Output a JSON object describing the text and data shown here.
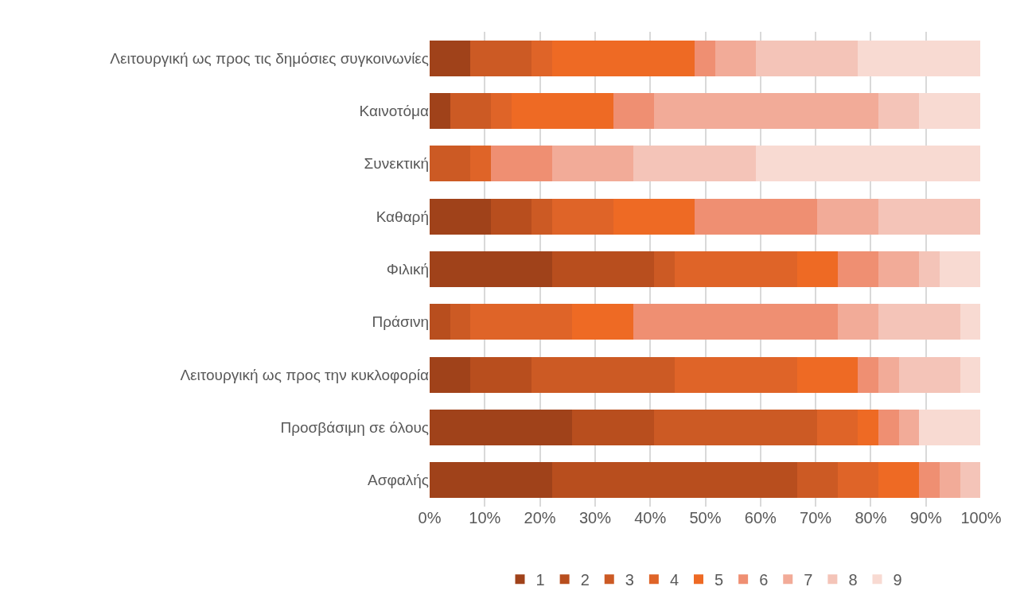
{
  "chart_data": {
    "type": "bar",
    "orientation": "horizontal",
    "stacked": true,
    "categories": [
      "Λειτουργική ως προς τις δημόσιες συγκοινωνίες",
      "Καινοτόμα",
      "Συνεκτική",
      "Καθαρή",
      "Φιλική",
      "Πράσινη",
      "Λειτουργική ως προς την κυκλοφορία",
      "Προσβάσιμη σε όλους",
      "Ασφαλής"
    ],
    "series": [
      {
        "name": "1",
        "color": "#a0421a",
        "values": [
          7.4,
          3.7,
          0,
          11.1,
          22.2,
          0,
          7.4,
          25.9,
          22.2
        ]
      },
      {
        "name": "2",
        "color": "#b84e1e",
        "values": [
          0,
          0,
          0,
          7.4,
          18.5,
          3.7,
          11.1,
          14.8,
          44.4
        ]
      },
      {
        "name": "3",
        "color": "#cc5a24",
        "values": [
          11.1,
          7.4,
          7.4,
          3.7,
          3.7,
          3.7,
          25.9,
          29.6,
          7.4
        ]
      },
      {
        "name": "4",
        "color": "#df6428",
        "values": [
          3.7,
          3.7,
          3.7,
          11.1,
          22.2,
          18.5,
          22.2,
          7.4,
          7.4
        ]
      },
      {
        "name": "5",
        "color": "#ee6a24",
        "values": [
          25.9,
          18.5,
          0,
          14.8,
          7.4,
          11.1,
          11.1,
          3.7,
          7.4
        ]
      },
      {
        "name": "6",
        "color": "#ef8f72",
        "values": [
          3.7,
          7.4,
          11.1,
          22.2,
          7.4,
          37.0,
          3.7,
          3.7,
          3.7
        ]
      },
      {
        "name": "7",
        "color": "#f2ab98",
        "values": [
          7.4,
          40.7,
          14.8,
          11.1,
          7.4,
          7.4,
          3.7,
          3.7,
          3.7
        ]
      },
      {
        "name": "8",
        "color": "#f4c4b8",
        "values": [
          18.5,
          7.4,
          22.2,
          18.5,
          3.7,
          14.8,
          11.1,
          0,
          3.7
        ]
      },
      {
        "name": "9",
        "color": "#f8dad2",
        "values": [
          22.2,
          11.1,
          40.7,
          0,
          7.4,
          3.7,
          3.7,
          11.1,
          0
        ]
      }
    ],
    "xlim": [
      0,
      100
    ],
    "xticks": [
      {
        "value": 0,
        "label": "0%"
      },
      {
        "value": 10,
        "label": "10%"
      },
      {
        "value": 20,
        "label": "20%"
      },
      {
        "value": 30,
        "label": "30%"
      },
      {
        "value": 40,
        "label": "40%"
      },
      {
        "value": 50,
        "label": "50%"
      },
      {
        "value": 60,
        "label": "60%"
      },
      {
        "value": 70,
        "label": "70%"
      },
      {
        "value": 80,
        "label": "80%"
      },
      {
        "value": 90,
        "label": "90%"
      },
      {
        "value": 100,
        "label": "100%"
      }
    ],
    "grid": "x",
    "legend": "bottom"
  }
}
